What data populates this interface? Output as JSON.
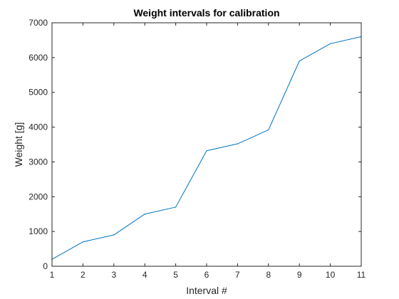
{
  "chart_data": {
    "type": "line",
    "title": "Weight intervals for calibration",
    "xlabel": "Interval #",
    "ylabel": "Weight [g]",
    "xlim": [
      1,
      11
    ],
    "ylim": [
      0,
      7000
    ],
    "xticks": [
      1,
      2,
      3,
      4,
      5,
      6,
      7,
      8,
      9,
      10,
      11
    ],
    "yticks": [
      0,
      1000,
      2000,
      3000,
      4000,
      5000,
      6000,
      7000
    ],
    "grid": false,
    "legend": "none",
    "series": [
      {
        "color": "#0072BD",
        "x": [
          1,
          2,
          3,
          4,
          5,
          6,
          7,
          8,
          9,
          10,
          11
        ],
        "y": [
          200,
          700,
          900,
          1500,
          1700,
          3320,
          3520,
          3920,
          5900,
          6400,
          6600
        ]
      }
    ]
  }
}
